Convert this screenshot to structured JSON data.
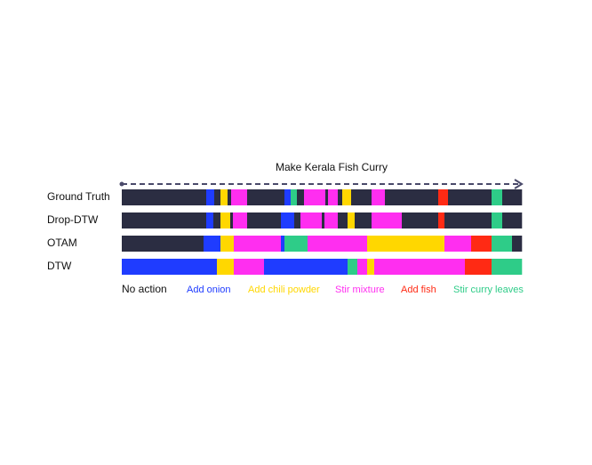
{
  "title": "Make Kerala Fish Curry",
  "xlim": [
    0,
    450
  ],
  "actions": [
    {
      "label": "No action",
      "color": "#2b2d42",
      "text_color": "#111111"
    },
    {
      "label": "Add onion",
      "color": "#1f3cff",
      "text_color": "#1f3cff"
    },
    {
      "label": "Add chili powder",
      "color": "#ffd700",
      "text_color": "#ffd700"
    },
    {
      "label": "Stir mixture",
      "color": "#ff2ef0",
      "text_color": "#ff2ef0"
    },
    {
      "label": "Add fish",
      "color": "#ff2a14",
      "text_color": "#ff2a14"
    },
    {
      "label": "Stir curry leaves",
      "color": "#2ecc88",
      "text_color": "#2ecc88"
    }
  ],
  "rows": [
    {
      "name": "Ground Truth",
      "segments": [
        [
          0,
          0,
          95
        ],
        [
          1,
          95,
          104
        ],
        [
          0,
          104,
          111
        ],
        [
          2,
          111,
          119
        ],
        [
          0,
          119,
          123
        ],
        [
          3,
          123,
          141
        ],
        [
          0,
          141,
          183
        ],
        [
          1,
          183,
          190
        ],
        [
          5,
          190,
          197
        ],
        [
          0,
          197,
          205
        ],
        [
          3,
          205,
          229
        ],
        [
          0,
          229,
          232
        ],
        [
          3,
          232,
          243
        ],
        [
          0,
          243,
          248
        ],
        [
          2,
          248,
          258
        ],
        [
          0,
          258,
          281
        ],
        [
          3,
          281,
          296
        ],
        [
          0,
          296,
          356
        ],
        [
          4,
          356,
          367
        ],
        [
          0,
          367,
          416
        ],
        [
          5,
          416,
          428
        ],
        [
          0,
          428,
          450
        ]
      ]
    },
    {
      "name": "Drop-DTW",
      "segments": [
        [
          0,
          0,
          95
        ],
        [
          1,
          95,
          103
        ],
        [
          0,
          103,
          111
        ],
        [
          2,
          111,
          122
        ],
        [
          0,
          122,
          125
        ],
        [
          3,
          125,
          141
        ],
        [
          0,
          141,
          179
        ],
        [
          1,
          179,
          194
        ],
        [
          0,
          194,
          201
        ],
        [
          3,
          201,
          225
        ],
        [
          0,
          225,
          228
        ],
        [
          3,
          228,
          243
        ],
        [
          0,
          243,
          254
        ],
        [
          2,
          254,
          262
        ],
        [
          0,
          262,
          281
        ],
        [
          3,
          281,
          315
        ],
        [
          0,
          315,
          356
        ],
        [
          4,
          356,
          363
        ],
        [
          0,
          363,
          416
        ],
        [
          5,
          416,
          428
        ],
        [
          0,
          428,
          450
        ]
      ]
    },
    {
      "name": "OTAM",
      "segments": [
        [
          0,
          0,
          92
        ],
        [
          1,
          92,
          111
        ],
        [
          2,
          111,
          126
        ],
        [
          3,
          126,
          179
        ],
        [
          1,
          179,
          183
        ],
        [
          5,
          183,
          209
        ],
        [
          3,
          209,
          276
        ],
        [
          2,
          276,
          363
        ],
        [
          3,
          363,
          393
        ],
        [
          4,
          393,
          416
        ],
        [
          5,
          416,
          439
        ],
        [
          0,
          439,
          450
        ]
      ]
    },
    {
      "name": "DTW",
      "segments": [
        [
          1,
          0,
          107
        ],
        [
          2,
          107,
          126
        ],
        [
          3,
          126,
          160
        ],
        [
          1,
          160,
          254
        ],
        [
          5,
          254,
          265
        ],
        [
          3,
          265,
          276
        ],
        [
          2,
          276,
          284
        ],
        [
          3,
          284,
          386
        ],
        [
          4,
          386,
          416
        ],
        [
          5,
          416,
          450
        ]
      ]
    }
  ]
}
